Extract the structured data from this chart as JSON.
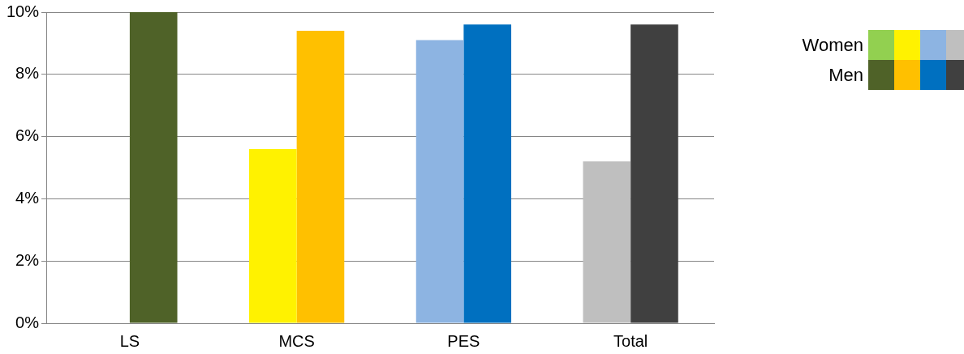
{
  "chart_data": {
    "type": "bar",
    "categories": [
      "LS",
      "MCS",
      "PES",
      "Total"
    ],
    "series": [
      {
        "name": "Women",
        "colors": [
          "#92d050",
          "#fff200",
          "#8db4e2",
          "#bfbfbf"
        ],
        "values": [
          null,
          5.6,
          9.1,
          5.2
        ]
      },
      {
        "name": "Men",
        "colors": [
          "#4f6228",
          "#ffc000",
          "#0070c0",
          "#404040"
        ],
        "values": [
          10,
          9.4,
          9.6,
          9.6
        ]
      }
    ],
    "ylim": [
      0,
      10
    ],
    "yticks": [
      {
        "value": 0,
        "label": "0%"
      },
      {
        "value": 2,
        "label": "2%"
      },
      {
        "value": 4,
        "label": "4%"
      },
      {
        "value": 6,
        "label": "6%"
      },
      {
        "value": 8,
        "label": "8%"
      },
      {
        "value": 10,
        "label": "10%"
      }
    ],
    "grid": "y",
    "legend": "top right"
  }
}
